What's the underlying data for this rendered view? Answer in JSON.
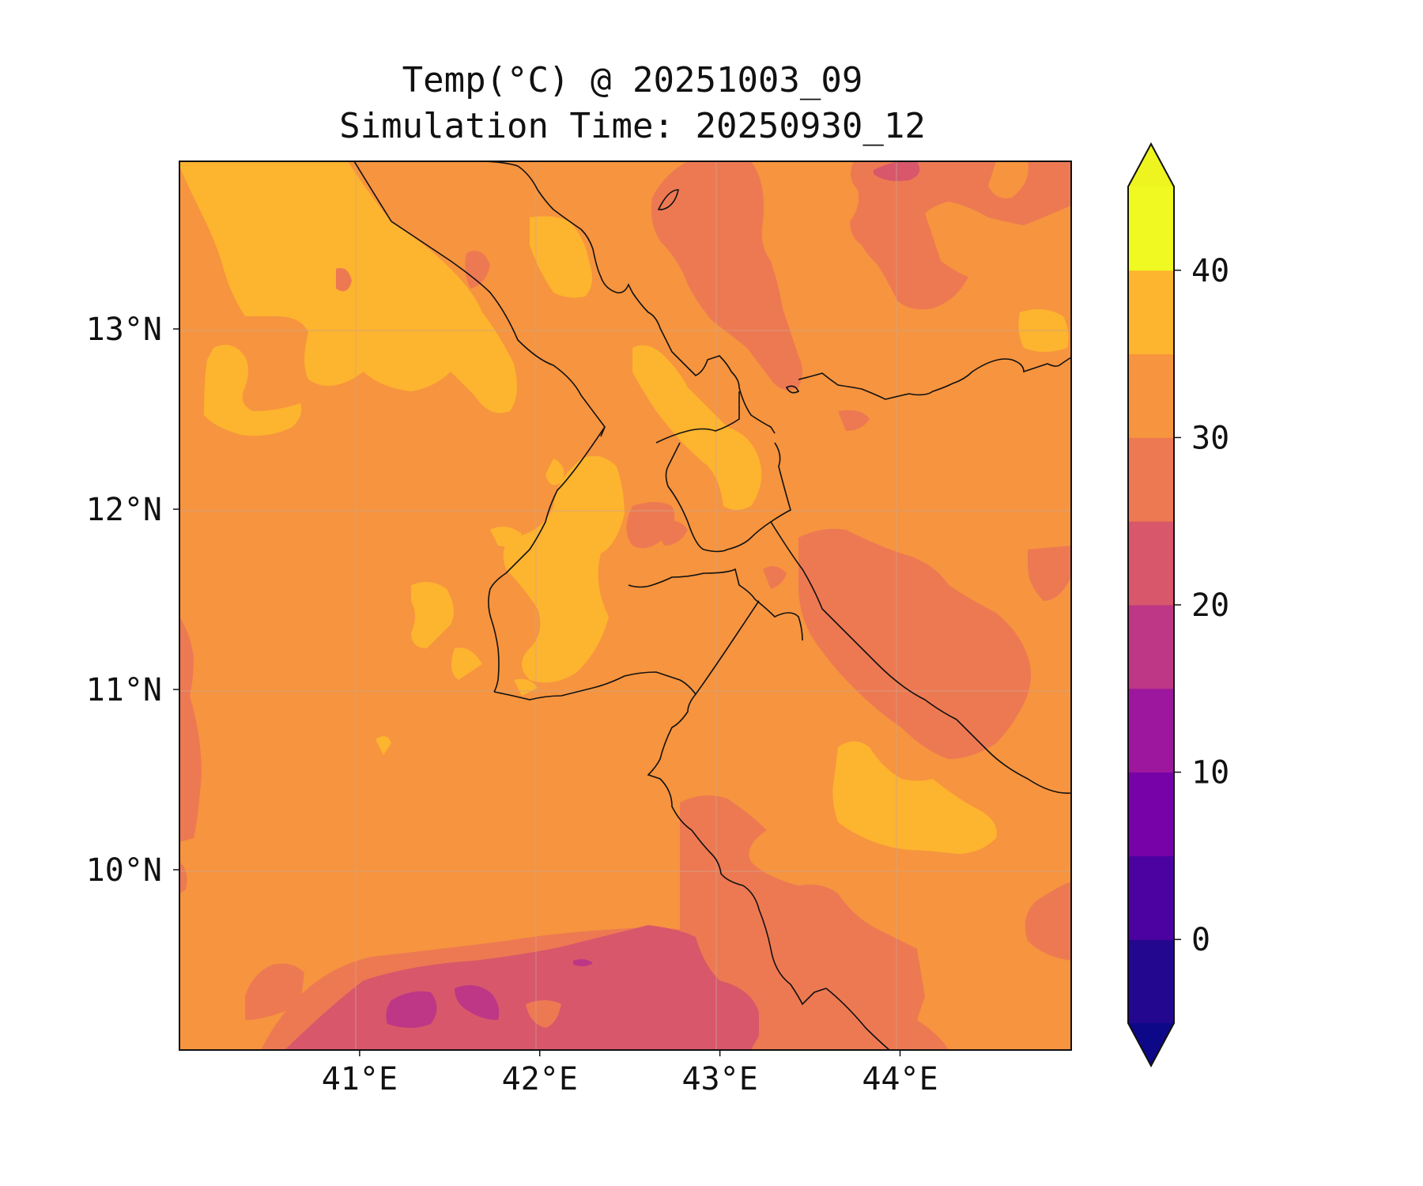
{
  "title": "Temp(°C) @ 20251003_09",
  "subtitle": "Simulation Time: 20250930_12",
  "map": {
    "lon_range": [
      40.0,
      44.95
    ],
    "lat_range": [
      9.0,
      13.93
    ],
    "lon_ticks": [
      {
        "value": 41,
        "label": "41°E"
      },
      {
        "value": 42,
        "label": "42°E"
      },
      {
        "value": 43,
        "label": "43°E"
      },
      {
        "value": 44,
        "label": "44°E"
      }
    ],
    "lat_ticks": [
      {
        "value": 13,
        "label": "13°N"
      },
      {
        "value": 12,
        "label": "12°N"
      },
      {
        "value": 11,
        "label": "11°N"
      },
      {
        "value": 10,
        "label": "10°N"
      }
    ],
    "gridlines": true,
    "background_level_color": "#f6943f"
  },
  "colorbar": {
    "extend": "both",
    "levels": [
      -5,
      0,
      5,
      10,
      15,
      20,
      25,
      30,
      35,
      40,
      45
    ],
    "colors": [
      "#23078f",
      "#4c02a1",
      "#7702a8",
      "#9c179e",
      "#bd3786",
      "#d8576b",
      "#ed7953",
      "#f6943f",
      "#fdb42f",
      "#f0f921"
    ],
    "under_color": "#0d0887",
    "over_color": "#eef41f",
    "ticks": [
      {
        "value": 0,
        "label": "0"
      },
      {
        "value": 10,
        "label": "10"
      },
      {
        "value": 20,
        "label": "20"
      },
      {
        "value": 30,
        "label": "30"
      },
      {
        "value": 40,
        "label": "40"
      }
    ]
  }
}
